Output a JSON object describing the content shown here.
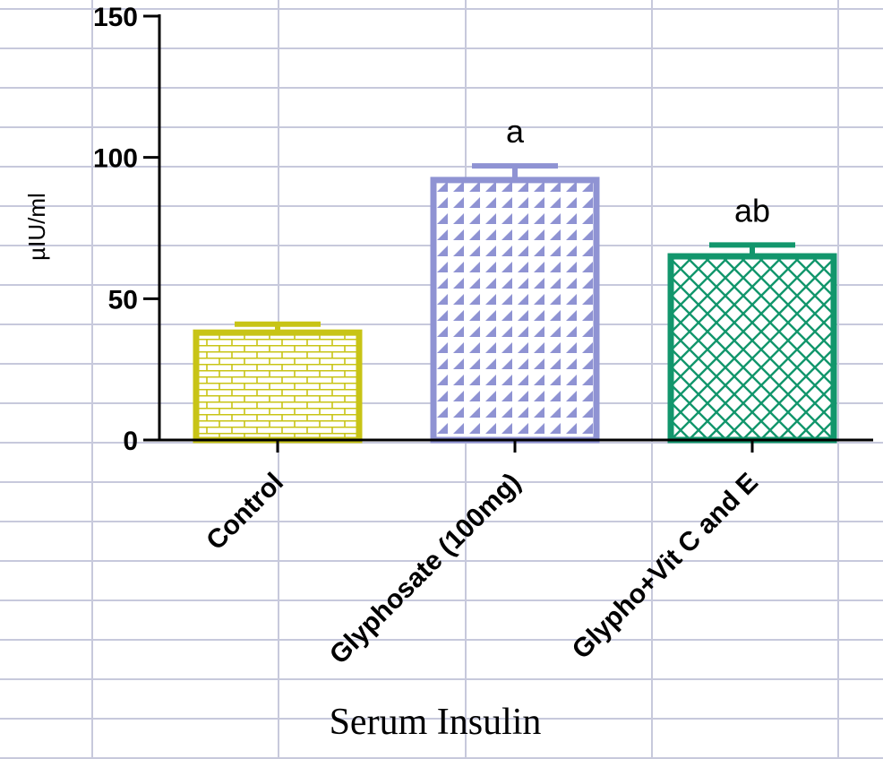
{
  "chart_data": {
    "type": "bar",
    "title": "Serum Insulin",
    "xlabel": "",
    "ylabel": "µIU/ml",
    "ylim": [
      0,
      150
    ],
    "yticks": [
      0,
      50,
      100,
      150
    ],
    "grid": true,
    "categories": [
      "Control",
      "Glyphosate (100mg)",
      "Glypho+Vit C and E"
    ],
    "values": [
      38,
      92,
      65
    ],
    "errors": [
      3,
      5,
      4
    ],
    "annotations": [
      "",
      "a",
      "ab"
    ],
    "colors": [
      "#c8c416",
      "#8f93d3",
      "#12966c"
    ],
    "patterns": [
      "brick",
      "diagonal-triangles",
      "crosshatch"
    ]
  }
}
